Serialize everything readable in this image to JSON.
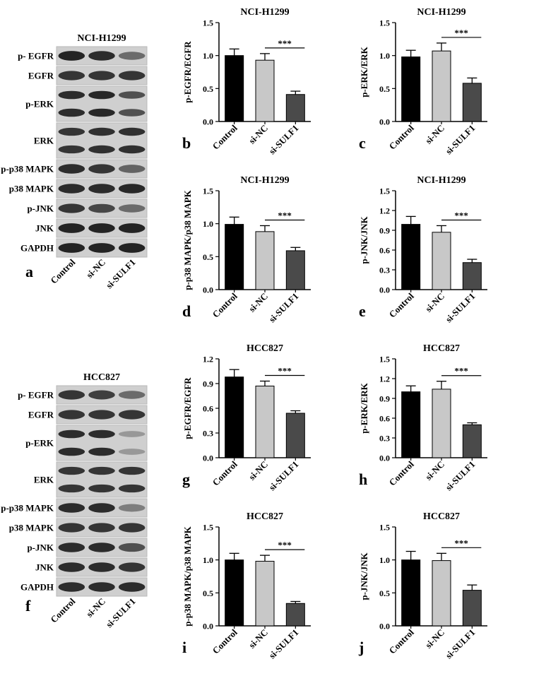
{
  "blots": [
    {
      "title": "NCI-H1299",
      "letter": "a",
      "rows": [
        {
          "label": "p- EGFR",
          "lanes": 1,
          "intensity": [
            0.95,
            0.9,
            0.55
          ]
        },
        {
          "label": "EGFR",
          "lanes": 1,
          "intensity": [
            0.85,
            0.85,
            0.85
          ]
        },
        {
          "label": "p-ERK",
          "lanes": 2,
          "intensity": [
            0.9,
            0.92,
            0.7
          ]
        },
        {
          "label": "ERK",
          "lanes": 2,
          "intensity": [
            0.85,
            0.88,
            0.88
          ]
        },
        {
          "label": "p-p38 MAPK",
          "lanes": 1,
          "intensity": [
            0.9,
            0.85,
            0.6
          ]
        },
        {
          "label": "p38 MAPK",
          "lanes": 1,
          "intensity": [
            0.9,
            0.9,
            0.92
          ]
        },
        {
          "label": "p-JNK",
          "lanes": 1,
          "intensity": [
            0.85,
            0.75,
            0.55
          ]
        },
        {
          "label": "JNK",
          "lanes": 1,
          "intensity": [
            0.95,
            0.95,
            0.95
          ]
        },
        {
          "label": "GAPDH",
          "lanes": 1,
          "intensity": [
            0.95,
            0.95,
            0.95
          ]
        }
      ],
      "lanes": [
        "Control",
        "si-NC",
        "si-SULF1"
      ]
    },
    {
      "title": "HCC827",
      "letter": "f",
      "rows": [
        {
          "label": "p- EGFR",
          "lanes": 1,
          "intensity": [
            0.85,
            0.8,
            0.55
          ]
        },
        {
          "label": "EGFR",
          "lanes": 1,
          "intensity": [
            0.85,
            0.85,
            0.85
          ]
        },
        {
          "label": "p-ERK",
          "lanes": 2,
          "intensity": [
            0.9,
            0.9,
            0.3
          ]
        },
        {
          "label": "ERK",
          "lanes": 2,
          "intensity": [
            0.85,
            0.85,
            0.85
          ]
        },
        {
          "label": "p-p38 MAPK",
          "lanes": 1,
          "intensity": [
            0.9,
            0.9,
            0.45
          ]
        },
        {
          "label": "p38 MAPK",
          "lanes": 1,
          "intensity": [
            0.85,
            0.85,
            0.85
          ]
        },
        {
          "label": "p-JNK",
          "lanes": 1,
          "intensity": [
            0.9,
            0.9,
            0.7
          ]
        },
        {
          "label": "JNK",
          "lanes": 1,
          "intensity": [
            0.9,
            0.9,
            0.85
          ]
        },
        {
          "label": "GAPDH",
          "lanes": 1,
          "intensity": [
            0.9,
            0.9,
            0.9
          ]
        }
      ],
      "lanes": [
        "Control",
        "si-NC",
        "si-SULF1"
      ]
    }
  ],
  "chart_data": [
    {
      "letter": "b",
      "type": "bar",
      "title": "NCI-H1299",
      "ylabel": "p-EGFR/EGFR",
      "categories": [
        "Control",
        "si-NC",
        "si-SULF1"
      ],
      "values": [
        1.0,
        0.93,
        0.41
      ],
      "errors": [
        0.1,
        0.1,
        0.05
      ],
      "ylim": [
        0,
        1.5
      ],
      "yticks": [
        "0.0",
        "0.5",
        "1.0",
        "1.5"
      ],
      "significance": "***",
      "bar_colors": [
        "#000000",
        "#c8c8c8",
        "#4a4a4a"
      ]
    },
    {
      "letter": "c",
      "type": "bar",
      "title": "NCI-H1299",
      "ylabel": "p-ERK/ERK",
      "categories": [
        "Control",
        "si-NC",
        "si-SULF1"
      ],
      "values": [
        0.98,
        1.07,
        0.58
      ],
      "errors": [
        0.1,
        0.12,
        0.08
      ],
      "ylim": [
        0,
        1.5
      ],
      "yticks": [
        "0.0",
        "0.5",
        "1.0",
        "1.5"
      ],
      "significance": "***",
      "bar_colors": [
        "#000000",
        "#c8c8c8",
        "#4a4a4a"
      ]
    },
    {
      "letter": "d",
      "type": "bar",
      "title": "NCI-H1299",
      "ylabel": "p-p38 MAPK/p38 MAPK",
      "categories": [
        "Control",
        "si-NC",
        "si-SULF1"
      ],
      "values": [
        0.99,
        0.88,
        0.59
      ],
      "errors": [
        0.11,
        0.09,
        0.05
      ],
      "ylim": [
        0,
        1.5
      ],
      "yticks": [
        "0.0",
        "0.5",
        "1.0",
        "1.5"
      ],
      "significance": "***",
      "bar_colors": [
        "#000000",
        "#c8c8c8",
        "#4a4a4a"
      ]
    },
    {
      "letter": "e",
      "type": "bar",
      "title": "NCI-H1299",
      "ylabel": "p-JNK/JNK",
      "categories": [
        "Control",
        "si-NC",
        "si-SULF1"
      ],
      "values": [
        0.99,
        0.87,
        0.41
      ],
      "errors": [
        0.12,
        0.1,
        0.05
      ],
      "ylim": [
        0,
        1.5
      ],
      "yticks": [
        "0.0",
        "0.3",
        "0.6",
        "0.9",
        "1.2",
        "1.5"
      ],
      "significance": "***",
      "bar_colors": [
        "#000000",
        "#c8c8c8",
        "#4a4a4a"
      ]
    },
    {
      "letter": "g",
      "type": "bar",
      "title": "HCC827",
      "ylabel": "p-EGFR/EGFR",
      "categories": [
        "Control",
        "si-NC",
        "si-SULF1"
      ],
      "values": [
        0.98,
        0.87,
        0.54
      ],
      "errors": [
        0.09,
        0.06,
        0.03
      ],
      "ylim": [
        0,
        1.2
      ],
      "yticks": [
        "0.0",
        "0.3",
        "0.6",
        "0.9",
        "1.2"
      ],
      "significance": "***",
      "bar_colors": [
        "#000000",
        "#c8c8c8",
        "#4a4a4a"
      ]
    },
    {
      "letter": "h",
      "type": "bar",
      "title": "HCC827",
      "ylabel": "p-ERK/ERK",
      "categories": [
        "Control",
        "si-NC",
        "si-SULF1"
      ],
      "values": [
        1.0,
        1.04,
        0.5
      ],
      "errors": [
        0.09,
        0.12,
        0.03
      ],
      "ylim": [
        0,
        1.5
      ],
      "yticks": [
        "0.0",
        "0.3",
        "0.6",
        "0.9",
        "1.2",
        "1.5"
      ],
      "significance": "***",
      "bar_colors": [
        "#000000",
        "#c8c8c8",
        "#4a4a4a"
      ]
    },
    {
      "letter": "i",
      "type": "bar",
      "title": "HCC827",
      "ylabel": "p-p38 MAPK/p38 MAPK",
      "categories": [
        "Control",
        "si-NC",
        "si-SULF1"
      ],
      "values": [
        1.0,
        0.98,
        0.34
      ],
      "errors": [
        0.1,
        0.09,
        0.03
      ],
      "ylim": [
        0,
        1.5
      ],
      "yticks": [
        "0.0",
        "0.5",
        "1.0",
        "1.5"
      ],
      "significance": "***",
      "bar_colors": [
        "#000000",
        "#c8c8c8",
        "#4a4a4a"
      ]
    },
    {
      "letter": "j",
      "type": "bar",
      "title": "HCC827",
      "ylabel": "p-JNK/JNK",
      "categories": [
        "Control",
        "si-NC",
        "si-SULF1"
      ],
      "values": [
        1.0,
        0.99,
        0.54
      ],
      "errors": [
        0.13,
        0.11,
        0.08
      ],
      "ylim": [
        0,
        1.5
      ],
      "yticks": [
        "0.0",
        "0.5",
        "1.0",
        "1.5"
      ],
      "significance": "***",
      "bar_colors": [
        "#000000",
        "#c8c8c8",
        "#4a4a4a"
      ]
    }
  ]
}
